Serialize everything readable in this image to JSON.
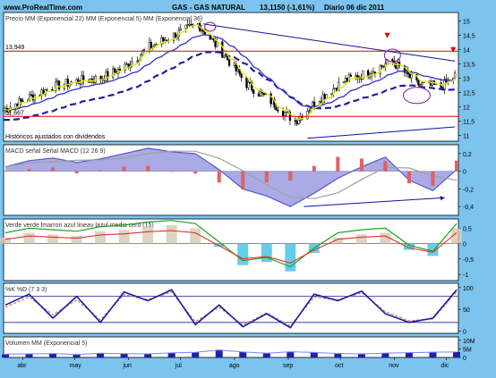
{
  "header": {
    "site": "www.ProRealTime.com",
    "title": "GAS - GAS NATURAL",
    "price_change": "13,1150 (-1,61%)",
    "period_date": "Diario 06 dic 2011"
  },
  "colors": {
    "background": "#7cc4ee",
    "panel": "#ffffff",
    "candle": "#000000",
    "sma22": "#3131c8",
    "sma5": "#e8e800",
    "sma36": "#2020a0",
    "support_resistance": "#e00000",
    "trend": "#1010a0",
    "macd_fill": "#5555cc",
    "signal": "#a0a0a0",
    "histogram": "#e06060",
    "stoch_k": "#1a1aa0",
    "stoch_d": "#e08080",
    "volume": "#2020a0"
  },
  "chart_data": [
    {
      "id": "price",
      "type": "line",
      "subtype": "candlestick",
      "legend": [
        "Precio",
        "MM (Exponencial 22)",
        "MM (Exponencial 5)",
        "MM (Exponencial 36)"
      ],
      "yticks": [
        11,
        11.5,
        12,
        12.5,
        13,
        13.5,
        14,
        14.5,
        15
      ],
      "ylim": [
        10.8,
        15.3
      ],
      "levels": [
        {
          "label": "13,949",
          "value": 13.949
        },
        {
          "label": "11,667",
          "value": 11.667
        }
      ],
      "trendlines": [
        {
          "from": [
            "2011-07-14",
            14.9
          ],
          "to": [
            "2011-12-06",
            13.6
          ]
        },
        {
          "from": [
            "2011-09-12",
            10.9
          ],
          "to": [
            "2011-12-06",
            11.3
          ]
        }
      ],
      "note": "Históricos ajustados con dividendos",
      "x": [
        "2011-03-21",
        "2011-04-04",
        "2011-04-18",
        "2011-05-02",
        "2011-05-16",
        "2011-05-30",
        "2011-06-13",
        "2011-06-27",
        "2011-07-11",
        "2011-07-25",
        "2011-08-08",
        "2011-08-22",
        "2011-09-05",
        "2011-09-19",
        "2011-10-03",
        "2011-10-17",
        "2011-10-31",
        "2011-11-14",
        "2011-11-28",
        "2011-12-06"
      ],
      "close": [
        11.9,
        12.3,
        12.7,
        12.9,
        13.0,
        13.4,
        14.1,
        14.5,
        14.9,
        13.9,
        12.8,
        12.2,
        11.5,
        12.3,
        12.9,
        13.2,
        13.6,
        12.8,
        12.7,
        13.1
      ]
    },
    {
      "id": "macd",
      "type": "area",
      "legend": [
        "MACD",
        "señal",
        "Señal MACD (12 26 9)"
      ],
      "yticks": [
        0.2,
        0,
        -0.2,
        -0.4
      ],
      "ylim": [
        -0.5,
        0.3
      ],
      "values": [
        0.05,
        0.12,
        0.15,
        0.1,
        0.14,
        0.2,
        0.26,
        0.22,
        0.2,
        0.02,
        -0.2,
        -0.28,
        -0.4,
        -0.25,
        -0.08,
        0.05,
        0.16,
        -0.1,
        -0.22,
        0.02
      ]
    },
    {
      "id": "momentum",
      "type": "area",
      "legend": [
        "Verde",
        "verde",
        "lmarron",
        "azul",
        "lineav",
        "lazul",
        "media",
        "cero (15)"
      ],
      "yticks": [
        0.5,
        0,
        -0.5,
        -1
      ],
      "ylim": [
        -1.2,
        0.8
      ],
      "values": [
        0.2,
        0.35,
        0.3,
        0.25,
        0.4,
        0.45,
        0.55,
        0.6,
        0.5,
        -0.1,
        -0.7,
        -0.6,
        -0.9,
        -0.3,
        0.2,
        0.3,
        0.35,
        -0.2,
        -0.4,
        0.5
      ]
    },
    {
      "id": "stochastic",
      "type": "line",
      "legend": [
        "%K",
        "%D",
        "(7 3 3)"
      ],
      "yticks": [
        100,
        50,
        0
      ],
      "ylim": [
        -5,
        110
      ],
      "k": [
        60,
        85,
        30,
        80,
        20,
        90,
        70,
        95,
        15,
        60,
        10,
        40,
        8,
        85,
        70,
        92,
        40,
        20,
        30,
        95
      ],
      "d": [
        55,
        78,
        38,
        72,
        26,
        84,
        72,
        90,
        22,
        55,
        14,
        42,
        12,
        78,
        72,
        88,
        45,
        24,
        28,
        90
      ]
    },
    {
      "id": "volume",
      "type": "bar",
      "legend": [
        "Volumen",
        "MM (Exponencial 5)"
      ],
      "yticks": [
        "10M",
        "5M",
        "0"
      ],
      "yticks_values": [
        10,
        5,
        0
      ],
      "ylim": [
        0,
        12
      ],
      "values": [
        1.8,
        2.0,
        2.2,
        1.6,
        2.4,
        2.1,
        2.0,
        2.6,
        3.0,
        4.5,
        3.2,
        2.4,
        3.4,
        2.9,
        2.2,
        2.0,
        2.5,
        2.8,
        3.1,
        3.2
      ],
      "xticks": [
        {
          "label": "abr",
          "date": "2011-04-01"
        },
        {
          "label": "may",
          "date": "2011-05-01"
        },
        {
          "label": "jun",
          "date": "2011-06-01"
        },
        {
          "label": "jul",
          "date": "2011-07-01"
        },
        {
          "label": "ago",
          "date": "2011-08-01"
        },
        {
          "label": "sep",
          "date": "2011-09-01"
        },
        {
          "label": "oct",
          "date": "2011-10-01"
        },
        {
          "label": "nov",
          "date": "2011-11-01"
        },
        {
          "label": "dic",
          "date": "2011-12-01"
        }
      ]
    }
  ]
}
